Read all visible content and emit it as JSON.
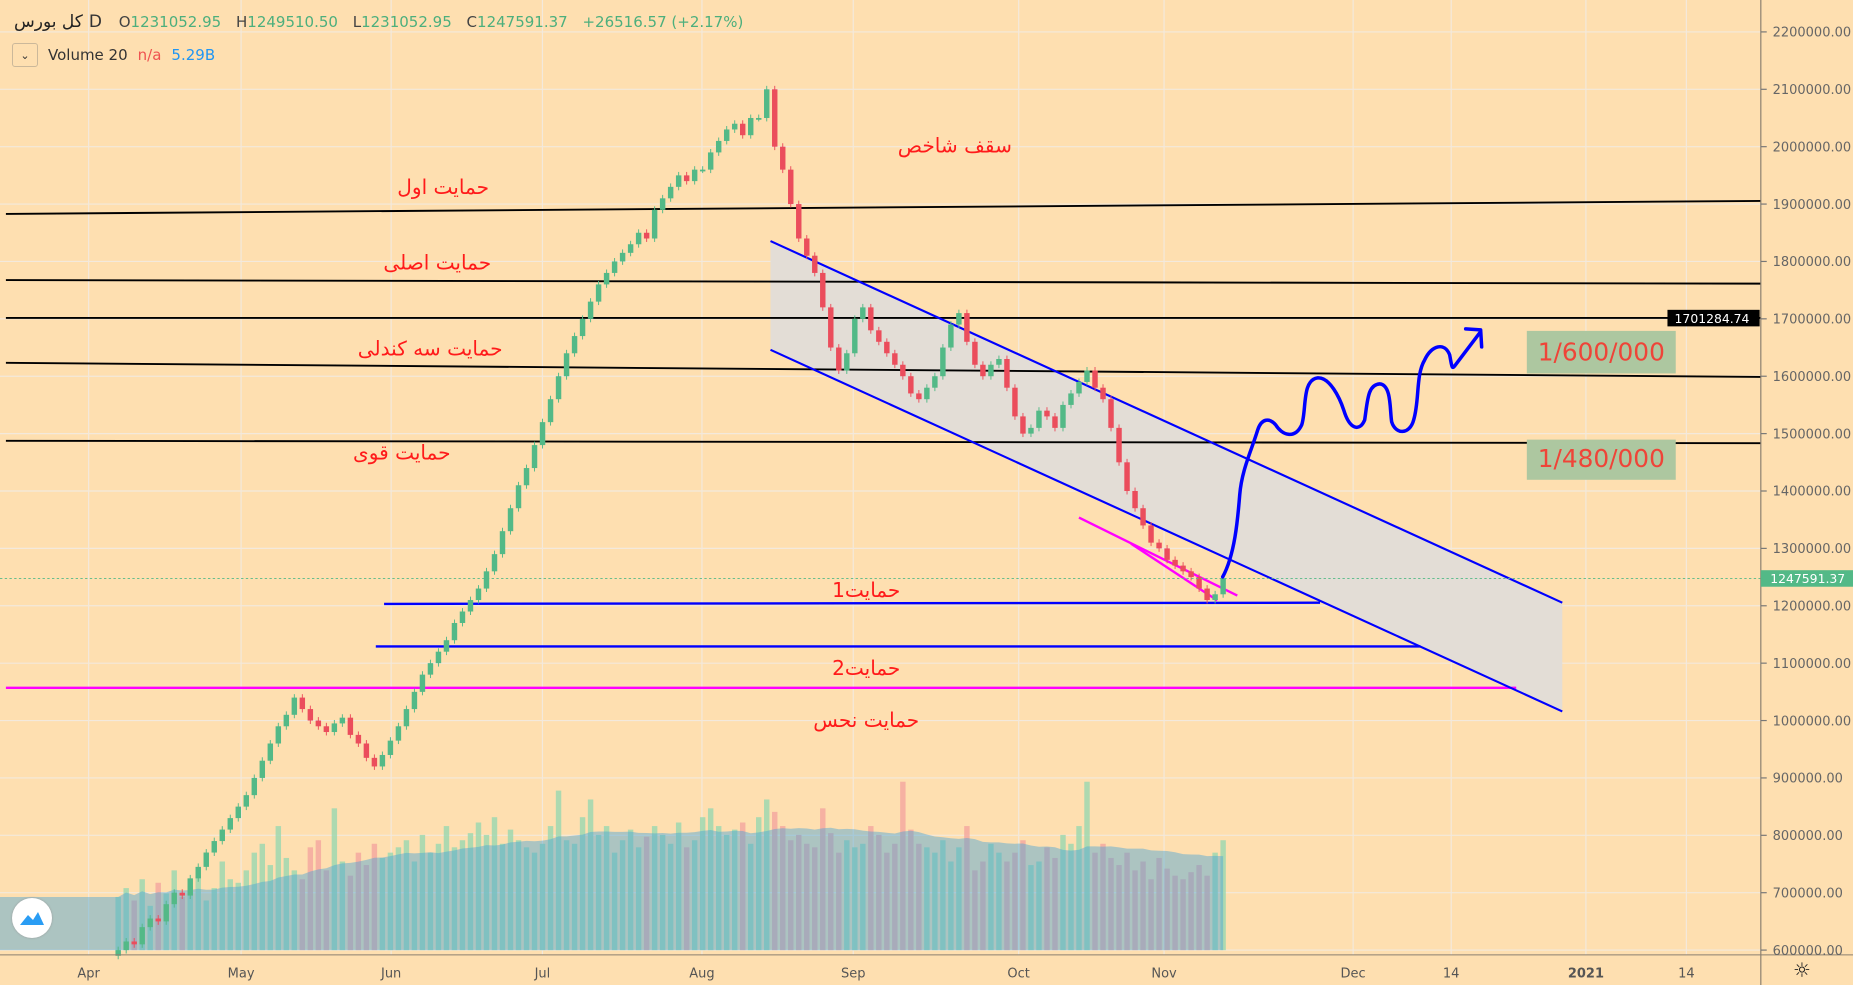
{
  "header": {
    "symbol": "کل بورس",
    "timeframe": "D",
    "open_label": "O",
    "open": "1231052.95",
    "high_label": "H",
    "high": "1249510.50",
    "low_label": "L",
    "low": "1231052.95",
    "close_label": "C",
    "close": "1247591.37",
    "change": "+26516.57 (+2.17%)"
  },
  "volume_legend": {
    "name": "Volume 20",
    "value1": "n/a",
    "value2": "5.29B"
  },
  "price_axis": {
    "ticks": [
      "2200000.00",
      "2100000.00",
      "2000000.00",
      "1900000.00",
      "1800000.00",
      "1700000.00",
      "1600000.00",
      "1500000.00",
      "1400000.00",
      "1300000.00",
      "1200000.00",
      "1100000.00",
      "1000000.00",
      "900000.00",
      "800000.00",
      "700000.00",
      "600000.00"
    ],
    "tick_values": [
      2200000,
      2100000,
      2000000,
      1900000,
      1800000,
      1700000,
      1600000,
      1500000,
      1400000,
      1300000,
      1200000,
      1100000,
      1000000,
      900000,
      800000,
      700000,
      600000
    ],
    "marker_line_label": "1701284.74",
    "marker_line_value": 1701284.74,
    "last_price_label": "1247591.37",
    "last_price_value": 1247591.37
  },
  "time_axis": {
    "labels": [
      "Apr",
      "May",
      "Jun",
      "Jul",
      "Aug",
      "Sep",
      "Oct",
      "Nov",
      "Dec",
      "14",
      "2021",
      "14"
    ]
  },
  "annotations": {
    "ceiling": "سقف شاخص",
    "support_first": "حمایت اول",
    "support_main": "حمایت اصلی",
    "support_three_candle": "حمایت سه کندلی",
    "support_strong": "حمایت قوی",
    "support_1": "حمایت1",
    "support_2": "حمایت2",
    "support_unlucky": "حمایت نحس",
    "target_high": "1/600/000",
    "target_low": "1/480/000"
  },
  "colors": {
    "background": "#fedfb0",
    "up": "#53b987",
    "down": "#eb4d5c",
    "channel": "#0000ff",
    "pink": "#ff00ff",
    "volume_ma": "#4aa3d8"
  },
  "chart_data": {
    "type": "candlestick",
    "title": "کل بورس D",
    "ylim": [
      600000,
      2200000
    ],
    "closes_thousands": [
      600,
      615,
      610,
      640,
      655,
      650,
      680,
      700,
      695,
      725,
      745,
      770,
      790,
      810,
      830,
      850,
      870,
      900,
      930,
      960,
      990,
      1010,
      1040,
      1020,
      1000,
      990,
      980,
      995,
      1005,
      975,
      960,
      935,
      920,
      940,
      965,
      990,
      1020,
      1050,
      1080,
      1100,
      1120,
      1140,
      1170,
      1190,
      1210,
      1230,
      1260,
      1290,
      1330,
      1370,
      1410,
      1440,
      1480,
      1520,
      1560,
      1600,
      1640,
      1670,
      1700,
      1730,
      1760,
      1780,
      1800,
      1815,
      1830,
      1850,
      1840,
      1890,
      1910,
      1930,
      1950,
      1940,
      1960,
      1960,
      1990,
      2010,
      2030,
      2040,
      2020,
      2050,
      2050,
      2100,
      2000,
      1960,
      1900,
      1840,
      1810,
      1780,
      1720,
      1650,
      1610,
      1640,
      1700,
      1720,
      1680,
      1660,
      1640,
      1620,
      1600,
      1570,
      1560,
      1580,
      1600,
      1650,
      1690,
      1710,
      1660,
      1620,
      1600,
      1620,
      1630,
      1580,
      1530,
      1500,
      1510,
      1540,
      1530,
      1510,
      1550,
      1570,
      1590,
      1610,
      1580,
      1560,
      1510,
      1450,
      1400,
      1370,
      1340,
      1310,
      1300,
      1280,
      1270,
      1260,
      1250,
      1230,
      1210,
      1220,
      1247.59
    ],
    "volume_relative": [
      30,
      35,
      28,
      40,
      25,
      38,
      32,
      45,
      30,
      36,
      42,
      28,
      35,
      50,
      40,
      38,
      45,
      55,
      60,
      48,
      70,
      52,
      45,
      40,
      58,
      62,
      45,
      80,
      50,
      42,
      55,
      48,
      60,
      52,
      55,
      58,
      62,
      50,
      65,
      55,
      60,
      70,
      58,
      62,
      66,
      72,
      65,
      75,
      60,
      68,
      62,
      58,
      55,
      60,
      70,
      90,
      62,
      60,
      75,
      85,
      65,
      70,
      55,
      62,
      68,
      58,
      64,
      70,
      65,
      60,
      72,
      58,
      62,
      75,
      80,
      70,
      65,
      68,
      72,
      60,
      75,
      85,
      78,
      70,
      62,
      65,
      60,
      58,
      80,
      66,
      55,
      62,
      58,
      60,
      70,
      65,
      55,
      60,
      95,
      68,
      60,
      58,
      55,
      62,
      50,
      58,
      70,
      45,
      50,
      60,
      55,
      50,
      55,
      62,
      48,
      50,
      58,
      52,
      65,
      60,
      70,
      95,
      55,
      60,
      52,
      48,
      55,
      45,
      50,
      40,
      52,
      46,
      42,
      40,
      44,
      48,
      42,
      55,
      62
    ]
  }
}
